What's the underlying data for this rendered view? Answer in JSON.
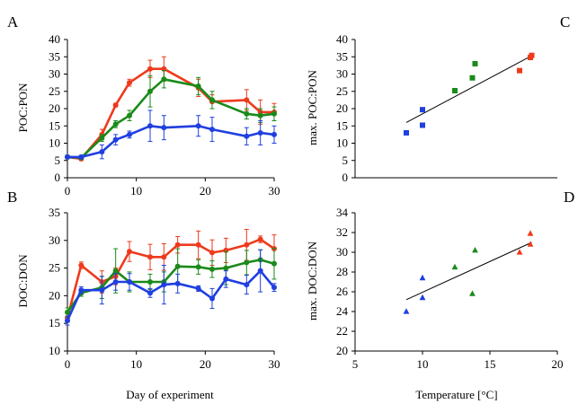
{
  "chart_data": [
    {
      "panel": "A",
      "type": "line",
      "ylabel": "POC:PON",
      "xlabel": "",
      "xlim": [
        0,
        30
      ],
      "ylim": [
        0,
        40
      ],
      "xticks": [
        0,
        10,
        20,
        30
      ],
      "yticks": [
        0,
        5,
        10,
        15,
        20,
        25,
        30,
        35,
        40
      ],
      "series": [
        {
          "color": "#ee3a1c",
          "x": [
            0,
            2,
            5,
            7,
            9,
            12,
            14,
            19,
            21,
            26,
            28,
            30
          ],
          "y": [
            6,
            5.5,
            12.5,
            21,
            27.5,
            31.5,
            31.5,
            26,
            22,
            22.5,
            19,
            19
          ],
          "err": [
            0.5,
            0.5,
            1.5,
            0.5,
            1,
            2.5,
            3.5,
            2.5,
            2,
            3,
            3.5,
            2.5
          ]
        },
        {
          "color": "#1a8a1a",
          "x": [
            0,
            2,
            5,
            7,
            9,
            12,
            14,
            19,
            21,
            26,
            28,
            30
          ],
          "y": [
            6,
            5.8,
            11.5,
            15.5,
            18,
            25,
            28.5,
            26.5,
            22.5,
            18.5,
            18,
            18.5
          ],
          "err": [
            0.5,
            0.5,
            1,
            1,
            1.5,
            4.5,
            2.5,
            2.5,
            2.5,
            1.5,
            2,
            2
          ]
        },
        {
          "color": "#1f3fe0",
          "x": [
            0,
            2,
            5,
            7,
            9,
            12,
            14,
            19,
            21,
            26,
            28,
            30
          ],
          "y": [
            6,
            6,
            7.5,
            11,
            12.5,
            15,
            14.5,
            15,
            14,
            12,
            13,
            12.5
          ],
          "err": [
            0.5,
            0.5,
            2,
            1.5,
            1,
            4.5,
            3.5,
            3,
            3.5,
            2.5,
            3.5,
            2.5
          ]
        }
      ]
    },
    {
      "panel": "B",
      "type": "line",
      "ylabel": "DOC:DON",
      "xlabel": "Day of experiment",
      "xlim": [
        0,
        30
      ],
      "ylim": [
        10,
        35
      ],
      "xticks": [
        0,
        10,
        20,
        30
      ],
      "yticks": [
        10,
        15,
        20,
        25,
        30,
        35
      ],
      "series": [
        {
          "color": "#ee3a1c",
          "x": [
            0,
            2,
            5,
            7,
            9,
            12,
            14,
            16,
            19,
            21,
            23,
            26,
            28,
            30
          ],
          "y": [
            16,
            25.5,
            22.5,
            23.5,
            28,
            27,
            27,
            29.2,
            29.2,
            27.8,
            28.2,
            29.2,
            30.2,
            28.5
          ],
          "err": [
            0.8,
            0.6,
            2,
            1.5,
            1.8,
            2.3,
            2.4,
            1.5,
            2.5,
            2.3,
            2.2,
            2.8,
            0.6,
            2.5
          ]
        },
        {
          "color": "#1a8a1a",
          "x": [
            0,
            2,
            5,
            7,
            9,
            12,
            14,
            16,
            19,
            21,
            23,
            26,
            28,
            30
          ],
          "y": [
            17,
            20.5,
            21.5,
            24.5,
            22.5,
            22.5,
            22.5,
            25.3,
            25.2,
            24.8,
            25,
            26,
            26.5,
            25.8
          ],
          "err": [
            0.8,
            0.6,
            2,
            4,
            1.8,
            1.4,
            1.8,
            3.2,
            1.3,
            1.5,
            3,
            2.2,
            1.8,
            2.8
          ]
        },
        {
          "color": "#1f3fe0",
          "x": [
            0,
            2,
            5,
            7,
            9,
            12,
            14,
            16,
            19,
            21,
            23,
            26,
            28,
            30
          ],
          "y": [
            15.5,
            21,
            21,
            22.5,
            22.5,
            20.5,
            22,
            22.2,
            21.3,
            19.5,
            23,
            22,
            24.5,
            21.5
          ],
          "err": [
            0.8,
            0.6,
            2.5,
            1.5,
            1.5,
            0.8,
            3.5,
            1.7,
            0.5,
            1.8,
            1.5,
            1.7,
            3.8,
            0.7
          ]
        }
      ]
    },
    {
      "panel": "C",
      "type": "scatter",
      "ylabel": "max. POC:PON",
      "xlabel": "",
      "xlim": [
        5,
        20
      ],
      "ylim": [
        0,
        40
      ],
      "yticks": [
        0,
        5,
        10,
        15,
        20,
        25,
        30,
        35,
        40
      ],
      "marker": "square",
      "points": [
        {
          "x": 8.8,
          "y": 13,
          "color": "#1f3fe0"
        },
        {
          "x": 10,
          "y": 19.7,
          "color": "#1f3fe0"
        },
        {
          "x": 10,
          "y": 15.2,
          "color": "#1f3fe0"
        },
        {
          "x": 12.4,
          "y": 25.2,
          "color": "#1a8a1a"
        },
        {
          "x": 13.7,
          "y": 28.9,
          "color": "#1a8a1a"
        },
        {
          "x": 13.9,
          "y": 33,
          "color": "#1a8a1a"
        },
        {
          "x": 17.2,
          "y": 31,
          "color": "#ee3a1c"
        },
        {
          "x": 18,
          "y": 34.8,
          "color": "#ee3a1c"
        },
        {
          "x": 18.1,
          "y": 35.4,
          "color": "#ee3a1c"
        }
      ],
      "trendline": {
        "x": [
          8.8,
          18.1
        ],
        "y": [
          16,
          35.3
        ]
      }
    },
    {
      "panel": "D",
      "type": "scatter",
      "ylabel": "max. DOC:DON",
      "xlabel": "Temperature [°C]",
      "xlim": [
        5,
        20
      ],
      "ylim": [
        20,
        34
      ],
      "xticks": [
        5,
        10,
        15,
        20
      ],
      "yticks": [
        20,
        22,
        24,
        26,
        28,
        30,
        32,
        34
      ],
      "marker": "triangle",
      "points": [
        {
          "x": 8.8,
          "y": 24,
          "color": "#1f3fe0"
        },
        {
          "x": 10,
          "y": 27.4,
          "color": "#1f3fe0"
        },
        {
          "x": 10,
          "y": 25.4,
          "color": "#1f3fe0"
        },
        {
          "x": 12.4,
          "y": 28.5,
          "color": "#1a8a1a"
        },
        {
          "x": 13.7,
          "y": 25.8,
          "color": "#1a8a1a"
        },
        {
          "x": 13.9,
          "y": 30.2,
          "color": "#1a8a1a"
        },
        {
          "x": 17.2,
          "y": 30,
          "color": "#ee3a1c"
        },
        {
          "x": 18,
          "y": 30.8,
          "color": "#ee3a1c"
        },
        {
          "x": 18,
          "y": 31.9,
          "color": "#ee3a1c"
        }
      ],
      "trendline": {
        "x": [
          8.8,
          18.1
        ],
        "y": [
          25.2,
          31
        ]
      }
    }
  ]
}
